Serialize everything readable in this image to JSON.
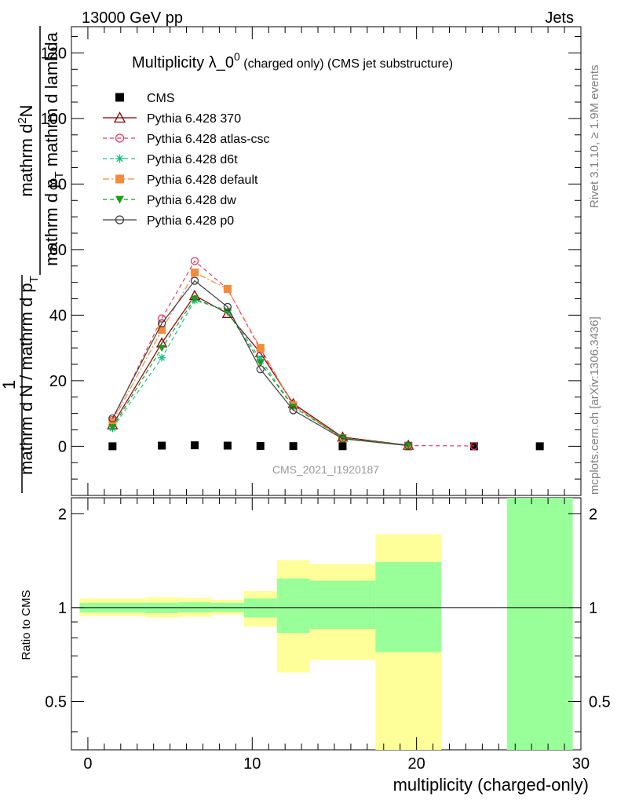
{
  "header": {
    "energy": "13000 GeV pp",
    "process": "Jets"
  },
  "side_text": {
    "rivet": "Rivet 3.1.10, ≥ 1.9M events",
    "source": "mcplots.cern.ch [arXiv:1306.3436]"
  },
  "watermark": "CMS_2021_I1920187",
  "chart_data": [
    {
      "type": "line",
      "title_main": "Multiplicity λ_0",
      "title_sup": "0",
      "title_rest": " (charged only) (CMS jet substructure)",
      "ylabel_numerator": "mathrm d²N",
      "ylabel_numerator_parts": {
        "left": "mathrm d",
        "sup": "2",
        "right": "N"
      },
      "ylabel_denominator": "mathrm d p_T mathrm d lambda",
      "ylabel_denominator_parts": {
        "left": "mathrm d p",
        "sub": "T",
        "right": " mathrm d lambda"
      },
      "ylabel_prefix_num": "1",
      "ylabel_prefix_den": "mathrm d N / mathrm d p_T",
      "ylabel_prefix_den_parts": {
        "left": "mathrm d N / mathrm d p",
        "sub": "T"
      },
      "xlim": [
        -1,
        30
      ],
      "ylim": [
        -15,
        128
      ],
      "y_ticks": [
        0,
        20,
        40,
        60,
        80,
        100,
        120
      ],
      "series": [
        {
          "name": "CMS",
          "color": "#000000",
          "marker": "filled-square",
          "line": "none",
          "x": [
            1.5,
            4.5,
            6.5,
            8.5,
            10.5,
            12.5,
            15.5,
            19.5,
            23.5,
            27.5
          ],
          "y": [
            0,
            0.2,
            0.3,
            0.2,
            0.1,
            0.05,
            0.02,
            0.01,
            0,
            0
          ]
        },
        {
          "name": "Pythia 6.428 370",
          "color": "#800000",
          "marker": "open-triangle",
          "line": "solid",
          "x": [
            1.5,
            4.5,
            6.5,
            8.5,
            10.5,
            12.5,
            15.5,
            19.5
          ],
          "y": [
            6.5,
            31.5,
            46.0,
            40.5,
            28.5,
            13.0,
            2.8,
            0.3
          ]
        },
        {
          "name": "Pythia 6.428 atlas-csc",
          "color": "#e8375f",
          "marker": "open-circle",
          "line": "dashed",
          "x": [
            1.5,
            4.5,
            6.5,
            8.5,
            10.5,
            12.5,
            15.5,
            19.5,
            23.5
          ],
          "y": [
            8.0,
            39.0,
            56.5,
            48.0,
            29.5,
            12.5,
            2.5,
            0.2,
            0.1
          ]
        },
        {
          "name": "Pythia 6.428 d6t",
          "color": "#19c28a",
          "marker": "star",
          "line": "dashed",
          "x": [
            1.5,
            4.5,
            6.5,
            8.5,
            10.5,
            12.5,
            15.5,
            19.5
          ],
          "y": [
            5.5,
            27.0,
            44.5,
            41.5,
            26.5,
            12.0,
            2.6,
            0.3
          ]
        },
        {
          "name": "Pythia 6.428 default",
          "color": "#f58a3a",
          "marker": "filled-square",
          "line": "dashdot",
          "x": [
            1.5,
            4.5,
            6.5,
            8.5,
            10.5,
            12.5,
            15.5,
            19.5
          ],
          "y": [
            7.5,
            35.5,
            53.0,
            48.0,
            30.0,
            12.5,
            2.5,
            0.2
          ]
        },
        {
          "name": "Pythia 6.428 dw",
          "color": "#1a9e1a",
          "marker": "filled-triangle-down",
          "line": "dashed",
          "x": [
            1.5,
            4.5,
            6.5,
            8.5,
            10.5,
            12.5,
            15.5,
            19.5
          ],
          "y": [
            5.8,
            30.0,
            45.0,
            41.0,
            25.5,
            12.0,
            2.6,
            0.3
          ]
        },
        {
          "name": "Pythia 6.428 p0",
          "color": "#404040",
          "marker": "open-circle",
          "line": "solid",
          "x": [
            1.5,
            4.5,
            6.5,
            8.5,
            10.5,
            12.5,
            15.5,
            19.5
          ],
          "y": [
            8.5,
            37.5,
            50.5,
            42.5,
            23.5,
            11.0,
            2.3,
            0.2
          ]
        }
      ]
    },
    {
      "type": "area",
      "ylabel": "Ratio to CMS",
      "xlabel": "multiplicity (charged-only)",
      "xlim": [
        -1,
        30
      ],
      "ylim": [
        0.35,
        2.25
      ],
      "x_ticks": [
        0,
        10,
        20,
        30
      ],
      "y_ticks": [
        0.5,
        1,
        2
      ],
      "y_tick_labels": [
        "0.5",
        "1",
        "2"
      ],
      "reference_line": 1,
      "bands": [
        {
          "x0": -0.5,
          "x1": 3.5,
          "yellow": [
            0.94,
            1.07
          ],
          "green": [
            0.965,
            1.035
          ]
        },
        {
          "x0": 3.5,
          "x1": 5.5,
          "yellow": [
            0.93,
            1.08
          ],
          "green": [
            0.96,
            1.035
          ]
        },
        {
          "x0": 5.5,
          "x1": 7.5,
          "yellow": [
            0.935,
            1.075
          ],
          "green": [
            0.965,
            1.04
          ]
        },
        {
          "x0": 7.5,
          "x1": 9.5,
          "yellow": [
            0.95,
            1.06
          ],
          "green": [
            0.97,
            1.035
          ]
        },
        {
          "x0": 9.5,
          "x1": 11.5,
          "yellow": [
            0.87,
            1.13
          ],
          "green": [
            0.93,
            1.07
          ]
        },
        {
          "x0": 11.5,
          "x1": 13.5,
          "yellow": [
            0.62,
            1.42
          ],
          "green": [
            0.83,
            1.24
          ]
        },
        {
          "x0": 13.5,
          "x1": 17.5,
          "yellow": [
            0.68,
            1.38
          ],
          "green": [
            0.855,
            1.22
          ]
        },
        {
          "x0": 17.5,
          "x1": 21.5,
          "yellow": [
            0.35,
            1.72
          ],
          "green": [
            0.72,
            1.4
          ]
        },
        {
          "x0": 25.5,
          "x1": 29.5,
          "yellow": null,
          "green": [
            0.35,
            2.25
          ]
        }
      ],
      "band_colors": {
        "yellow": "#ffff99",
        "green": "#99ff99"
      }
    }
  ]
}
